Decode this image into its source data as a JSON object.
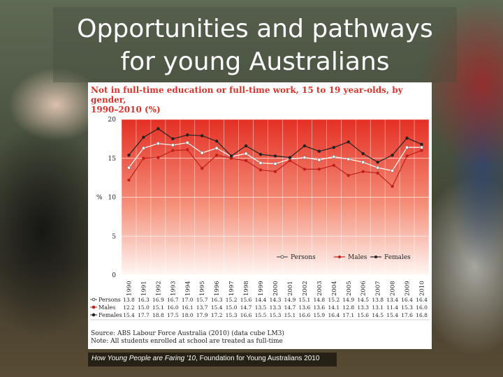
{
  "slide": {
    "title": "Opportunities and pathways\nfor young Australians",
    "caption_italic": "How Young People are Faring '10",
    "caption_rest": ", Foundation for Young Australians 2010"
  },
  "chart_data": {
    "type": "line",
    "title": "Not in full-time education or full-time work, 15 to 19 year-olds, by gender,\n1990–2010 (%)",
    "ylabel": "%",
    "ylim": [
      0,
      20
    ],
    "yticks": [
      0,
      5,
      10,
      15,
      20
    ],
    "grid": true,
    "legend_position": "bottom-right",
    "categories": [
      "1990",
      "1991",
      "1992",
      "1993",
      "1994",
      "1995",
      "1996",
      "1997",
      "1998",
      "1999",
      "2000",
      "2001",
      "2002",
      "2003",
      "2004",
      "2005",
      "2006",
      "2007",
      "2008",
      "2009",
      "2010"
    ],
    "series": [
      {
        "name": "Persons",
        "marker": "open-circle",
        "color": "#ffffff",
        "values": [
          13.8,
          16.3,
          16.9,
          16.7,
          17.0,
          15.7,
          16.3,
          15.2,
          15.6,
          14.4,
          14.3,
          14.9,
          15.1,
          14.8,
          15.2,
          14.9,
          14.5,
          13.8,
          13.4,
          16.4,
          16.4
        ]
      },
      {
        "name": "Males",
        "marker": "dot",
        "color": "#c0201a",
        "values": [
          12.2,
          15.0,
          15.1,
          16.0,
          16.1,
          13.7,
          15.4,
          15.0,
          14.7,
          13.5,
          13.3,
          14.7,
          13.6,
          13.6,
          14.1,
          12.8,
          13.3,
          13.1,
          11.4,
          15.3,
          16.0
        ]
      },
      {
        "name": "Females",
        "marker": "dot",
        "color": "#222222",
        "values": [
          15.4,
          17.7,
          18.8,
          17.5,
          18.0,
          17.9,
          17.2,
          15.3,
          16.6,
          15.5,
          15.3,
          15.1,
          16.6,
          15.9,
          16.4,
          17.1,
          15.6,
          14.5,
          15.4,
          17.6,
          16.8
        ]
      }
    ],
    "table_row_labels": [
      "Persons",
      "Males",
      "Females"
    ],
    "source": "Source: ABS Labour Force Australia (2010) (data cube LM3)",
    "note": "Note: All students enrolled at school are treated as full-time"
  }
}
